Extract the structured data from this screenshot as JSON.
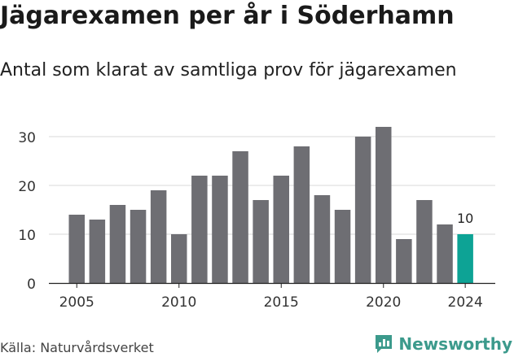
{
  "title": "Jägarexamen per år i Söderhamn",
  "subtitle": "Antal som klarat av samtliga prov för jägarexamen",
  "source": "Källa: Naturvårdsverket",
  "brand": {
    "name": "Newsworthy",
    "icon": "newsworthy-chart-icon",
    "color": "#3c9a8c"
  },
  "colors": {
    "bar": "#6e6e73",
    "highlight": "#0da395",
    "grid": "#d9d9d9",
    "axis": "#222222"
  },
  "chart_data": {
    "type": "bar",
    "x": [
      2005,
      2006,
      2007,
      2008,
      2009,
      2010,
      2011,
      2012,
      2013,
      2014,
      2015,
      2016,
      2017,
      2018,
      2019,
      2020,
      2021,
      2022,
      2023,
      2024
    ],
    "values": [
      14,
      13,
      16,
      15,
      19,
      10,
      22,
      22,
      27,
      17,
      22,
      28,
      18,
      15,
      30,
      32,
      9,
      17,
      12,
      10
    ],
    "xticks": [
      "2005",
      "2010",
      "2015",
      "2020",
      "2024"
    ],
    "yticks": [
      "0",
      "10",
      "20",
      "30"
    ],
    "ylim": [
      0,
      33
    ],
    "highlight_index": 19,
    "data_labels": [
      {
        "index": 19,
        "text": "10"
      }
    ],
    "grid": true,
    "xlabel": "",
    "ylabel": ""
  }
}
